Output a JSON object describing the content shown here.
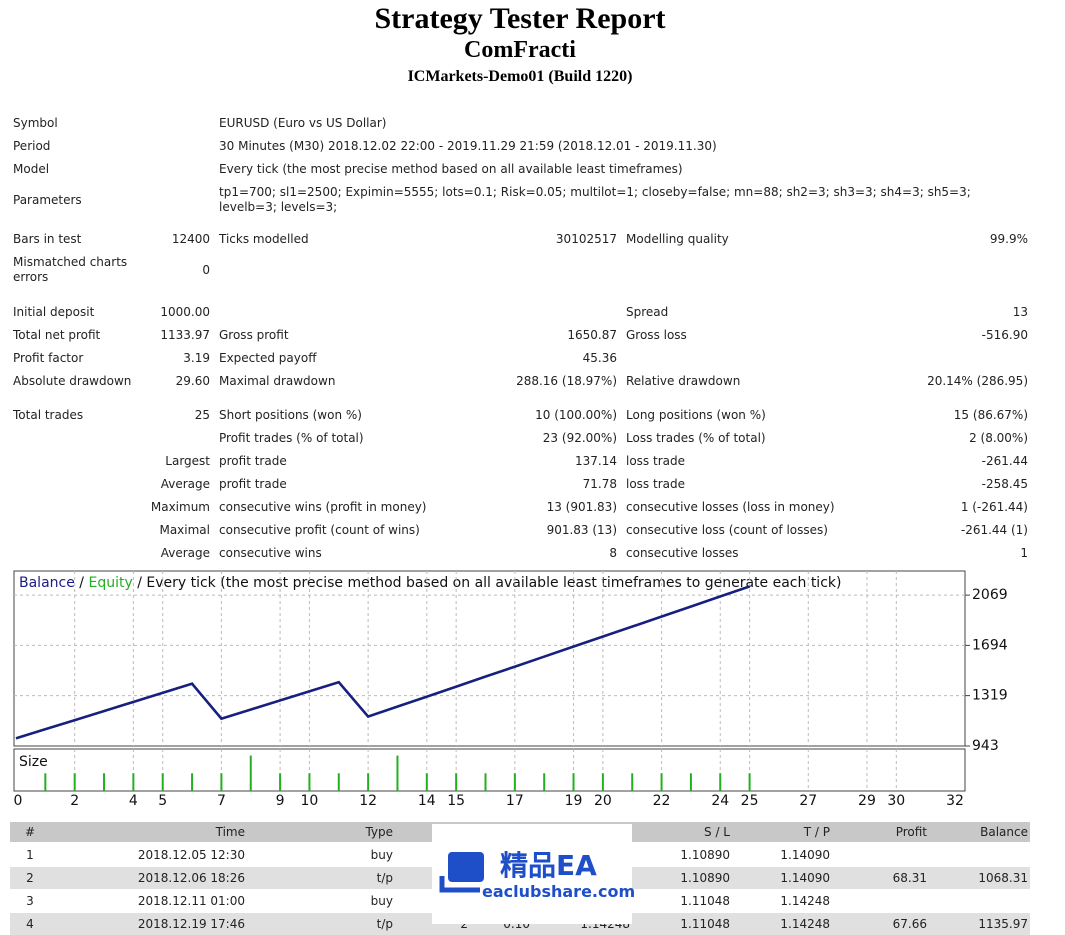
{
  "header": {
    "title": "Strategy Tester Report",
    "expert": "ComFracti",
    "server": "ICMarkets-Demo01 (Build 1220)"
  },
  "summary": [
    [
      "Symbol",
      "EURUSD (Euro vs US Dollar)"
    ],
    [
      "Period",
      "30 Minutes (M30) 2018.12.02 22:00 - 2019.11.29 21:59 (2018.12.01 - 2019.11.30)"
    ],
    [
      "Model",
      "Every tick (the most precise method based on all available least timeframes)"
    ],
    [
      "Parameters",
      "tp1=700; sl1=2500; Expimin=5555; lots=0.1; Risk=0.05; multilot=1; closeby=false; mn=88; sh2=3; sh3=3; sh4=3; sh5=3; levelb=3; levels=3;"
    ],
    [
      "Bars in test",
      "12400",
      "Ticks modelled",
      "30102517",
      "Modelling quality",
      "99.9%"
    ],
    [
      "Mismatched charts errors",
      "0",
      null,
      null,
      null,
      null
    ],
    [
      "Initial deposit",
      "1000.00",
      null,
      null,
      "Spread",
      "13"
    ],
    [
      "Total net profit",
      "1133.97",
      "Gross profit",
      "1650.87",
      "Gross loss",
      "-516.90"
    ],
    [
      "Profit factor",
      "3.19",
      "Expected payoff",
      "45.36",
      null,
      null
    ],
    [
      "Absolute drawdown",
      "29.60",
      "Maximal drawdown",
      "288.16 (18.97%)",
      "Relative drawdown",
      "20.14% (286.95)"
    ],
    [
      "Total trades",
      "25",
      "Short positions (won %)",
      "10 (100.00%)",
      "Long positions (won %)",
      "15 (86.67%)"
    ],
    [
      null,
      null,
      "Profit trades (% of total)",
      "23 (92.00%)",
      "Loss trades (% of total)",
      "2 (8.00%)"
    ],
    [
      null,
      "Largest",
      "profit trade",
      "137.14",
      "loss trade",
      "-261.44"
    ],
    [
      null,
      "Average",
      "profit trade",
      "71.78",
      "loss trade",
      "-258.45"
    ],
    [
      null,
      "Maximum",
      "consecutive wins (profit in money)",
      "13 (901.83)",
      "consecutive losses (loss in money)",
      "1 (-261.44)"
    ],
    [
      null,
      "Maximal",
      "consecutive profit (count of wins)",
      "901.83 (13)",
      "consecutive loss (count of losses)",
      "-261.44 (1)"
    ],
    [
      null,
      "Average",
      "consecutive wins",
      "8",
      "consecutive losses",
      "1"
    ]
  ],
  "chart_data": [
    {
      "type": "line",
      "subtitle": "Every tick (the most precise method based on all available least timeframes to generate each tick)",
      "legend_separator": "/",
      "x": [
        0,
        1,
        2,
        3,
        4,
        5,
        6,
        7,
        8,
        9,
        10,
        11,
        12,
        13,
        14,
        15,
        16,
        17,
        18,
        19,
        20,
        21,
        22,
        23,
        24,
        25
      ],
      "series": [
        {
          "name": "Equity",
          "color": "#22b022",
          "values": [
            1000,
            1068.31,
            1135.97,
            1204,
            1272,
            1340,
            1408,
            1147,
            1215,
            1283,
            1351,
            1419,
            1163,
            1237,
            1311,
            1386,
            1461,
            1535,
            1610,
            1685,
            1760,
            1834,
            1909,
            1984,
            2059,
            2133.97
          ]
        },
        {
          "name": "Balance",
          "color": "#1c1c86",
          "values": [
            1000,
            1068.31,
            1135.97,
            1204,
            1272,
            1340,
            1408,
            1147,
            1215,
            1283,
            1351,
            1419,
            1163,
            1237,
            1311,
            1386,
            1461,
            1535,
            1610,
            1685,
            1760,
            1834,
            1909,
            1984,
            2059,
            2133.97
          ]
        }
      ],
      "xlim": [
        0,
        32
      ],
      "ylim": [
        943,
        2249
      ],
      "yticks": [
        943,
        1319,
        1694,
        2069
      ],
      "grid": true
    },
    {
      "type": "bar",
      "title": "Size",
      "color": "#22b022",
      "x": [
        1,
        2,
        3,
        4,
        5,
        6,
        7,
        8,
        9,
        10,
        11,
        12,
        13,
        14,
        15,
        16,
        17,
        18,
        19,
        20,
        21,
        22,
        23,
        24,
        25
      ],
      "values": [
        0.1,
        0.1,
        0.1,
        0.1,
        0.1,
        0.1,
        0.1,
        0.2,
        0.1,
        0.1,
        0.1,
        0.1,
        0.2,
        0.1,
        0.1,
        0.1,
        0.1,
        0.1,
        0.1,
        0.1,
        0.1,
        0.1,
        0.1,
        0.1,
        0.1
      ],
      "xlim": [
        0,
        32
      ],
      "ylim": [
        0,
        0.22
      ],
      "xticks": [
        0,
        2,
        4,
        5,
        7,
        9,
        10,
        12,
        14,
        15,
        17,
        19,
        20,
        22,
        24,
        25,
        27,
        29,
        30,
        32
      ],
      "grid": true
    }
  ],
  "trades": {
    "columns": [
      "#",
      "Time",
      "Type",
      null,
      null,
      null,
      "S / L",
      "T / P",
      "Profit",
      "Balance"
    ],
    "rows": [
      [
        "1",
        "2018.12.05 12:30",
        "buy",
        null,
        null,
        null,
        "1.10890",
        "1.14090",
        null,
        null
      ],
      [
        "2",
        "2018.12.06 18:26",
        "t/p",
        null,
        null,
        null,
        "1.10890",
        "1.14090",
        "68.31",
        "1068.31"
      ],
      [
        "3",
        "2018.12.11 01:00",
        "buy",
        null,
        null,
        null,
        "1.11048",
        "1.14248",
        null,
        null
      ],
      [
        "4",
        "2018.12.19 17:46",
        "t/p",
        "2",
        "0.10",
        "1.14248",
        "1.11048",
        "1.14248",
        "67.66",
        "1135.97"
      ]
    ]
  },
  "watermark": {
    "brand": "精品EA",
    "site": "eaclubshare.com"
  }
}
